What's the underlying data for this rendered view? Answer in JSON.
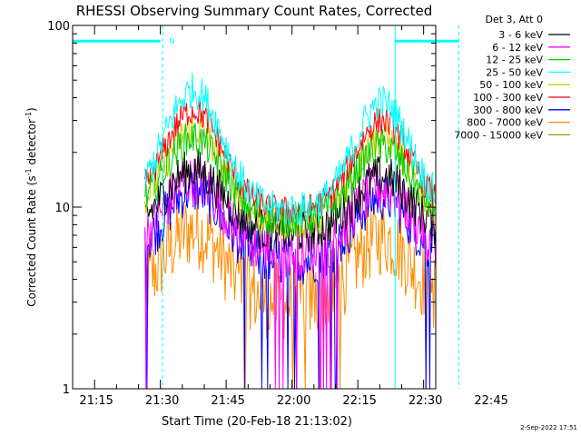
{
  "chart_data": {
    "type": "line",
    "title": "RHESSI Observing Summary Count Rates, Corrected",
    "xlabel": "Start Time (20-Feb-18 21:13:02)",
    "ylabel_main": "Corrected Count Rate (s",
    "ylabel_sup1": "-1",
    "ylabel_mid": " detector",
    "ylabel_sup2": "-1",
    "ylabel_end": ")",
    "y_scale": "log",
    "xlim_minutes": [
      -3,
      77
    ],
    "ylim": [
      1,
      100
    ],
    "x_ticks": [
      {
        "minute": 2,
        "label": "21:15"
      },
      {
        "minute": 17,
        "label": "21:30"
      },
      {
        "minute": 32,
        "label": "21:45"
      },
      {
        "minute": 47,
        "label": "22:00"
      },
      {
        "minute": 62,
        "label": "22:15"
      },
      {
        "minute": 77,
        "label": "22:30"
      },
      {
        "minute": 92,
        "label": "22:45"
      }
    ],
    "y_ticks": [
      {
        "value": 1,
        "label": "1"
      },
      {
        "value": 10,
        "label": "10"
      },
      {
        "value": 100,
        "label": "100"
      }
    ],
    "legend_header": "Det 3, Att 0",
    "legend_position": "top-right",
    "series": [
      {
        "name": "3 - 6 keV",
        "color": "#000000",
        "peak": 16,
        "trough": 7.2,
        "noise": 0.12
      },
      {
        "name": "6 - 12 keV",
        "color": "#ff00ff",
        "peak": 14,
        "trough": 5.6,
        "noise": 0.14
      },
      {
        "name": "12 - 25 keV",
        "color": "#00cc00",
        "peak": 24,
        "trough": 8.5,
        "noise": 0.1
      },
      {
        "name": "25 - 50 keV",
        "color": "#00ffff",
        "peak": 44,
        "trough": 9.5,
        "noise": 0.1
      },
      {
        "name": "50 - 100 keV",
        "color": "#cccc00",
        "peak": 27,
        "trough": 8.2,
        "noise": 0.1
      },
      {
        "name": "100 - 300 keV",
        "color": "#ff0000",
        "peak": 34,
        "trough": 9.5,
        "noise": 0.08
      },
      {
        "name": "300 - 800 keV",
        "color": "#0000ff",
        "peak": 12.5,
        "trough": 5.0,
        "noise": 0.14
      },
      {
        "name": "800 - 7000 keV",
        "color": "#ff8c00",
        "peak": 7.5,
        "trough": 3.0,
        "noise": 0.22
      },
      {
        "name": "7000 - 15000 keV",
        "color": "#999900",
        "peak": 0,
        "trough": 0,
        "noise": 0
      }
    ],
    "data_window_minutes": [
      13.5,
      86.5
    ],
    "peaks_minutes": [
      24.5,
      67.5
    ],
    "orbit_markers_minutes": [
      -3,
      70.5
    ],
    "saa_markers_minutes": [
      17.5,
      85
    ],
    "bar_segments_minutes": [
      [
        -3,
        17
      ],
      [
        70.5,
        85
      ]
    ],
    "bar_value": 82,
    "bar_label": "N",
    "bar_label_minute": 19
  },
  "footer": {
    "date": "2-Sep-2022 17:51"
  }
}
